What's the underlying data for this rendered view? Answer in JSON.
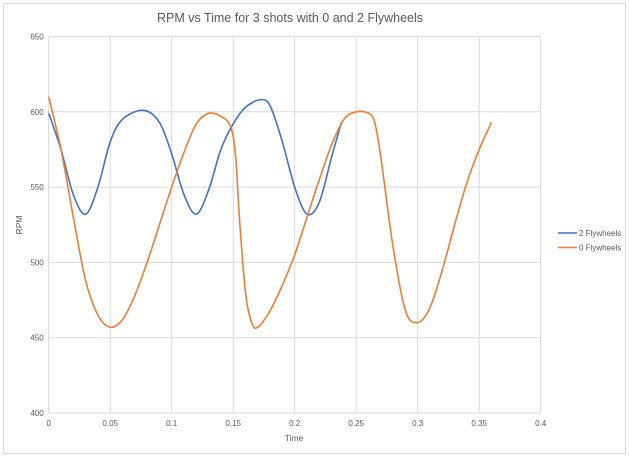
{
  "chart_data": {
    "type": "line",
    "title": "RPM vs Time for 3 shots with 0 and 2 Flywheels",
    "xlabel": "Time",
    "ylabel": "RPM",
    "xlim": [
      0,
      0.4
    ],
    "ylim": [
      400,
      650
    ],
    "xticks": [
      "0",
      "0.05",
      "0.1",
      "0.15",
      "0.2",
      "0.25",
      "0.3",
      "0.35",
      "0.4"
    ],
    "yticks": [
      "400",
      "450",
      "500",
      "550",
      "600",
      "650"
    ],
    "grid": true,
    "legend_position": "right",
    "series": [
      {
        "name": "2 Flywheels",
        "color": "#4472C4",
        "x": [
          0,
          0.01,
          0.02,
          0.03,
          0.04,
          0.05,
          0.06,
          0.077,
          0.09,
          0.1,
          0.11,
          0.12,
          0.13,
          0.14,
          0.15,
          0.16,
          0.172,
          0.18,
          0.19,
          0.2,
          0.21,
          0.22,
          0.23,
          0.238
        ],
        "y": [
          599,
          575,
          545,
          532,
          550,
          580,
          595,
          601,
          593,
          572,
          545,
          532,
          548,
          575,
          592,
          603,
          608,
          604,
          580,
          550,
          532,
          540,
          570,
          593
        ]
      },
      {
        "name": "0 Flywheels",
        "color": "#ED7D31",
        "x": [
          0,
          0.01,
          0.02,
          0.03,
          0.04,
          0.05,
          0.06,
          0.07,
          0.08,
          0.09,
          0.1,
          0.11,
          0.12,
          0.13,
          0.14,
          0.148,
          0.152,
          0.155,
          0.16,
          0.165,
          0.17,
          0.18,
          0.19,
          0.2,
          0.21,
          0.22,
          0.23,
          0.24,
          0.25,
          0.26,
          0.265,
          0.27,
          0.28,
          0.29,
          0.3,
          0.31,
          0.32,
          0.33,
          0.34,
          0.35,
          0.36
        ],
        "y": [
          610,
          575,
          530,
          488,
          465,
          457,
          462,
          478,
          500,
          525,
          550,
          573,
          592,
          599,
          597,
          590,
          570,
          530,
          480,
          460,
          457,
          468,
          485,
          505,
          530,
          555,
          578,
          595,
          600,
          599,
          593,
          570,
          510,
          468,
          460,
          470,
          495,
          525,
          553,
          575,
          593
        ]
      }
    ]
  }
}
